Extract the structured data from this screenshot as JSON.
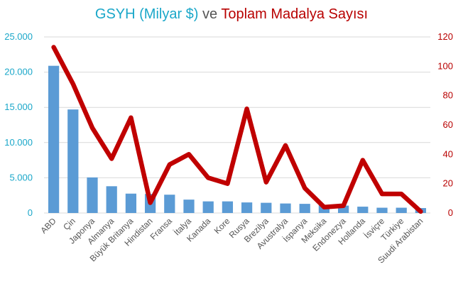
{
  "title": {
    "part1": "GSYH (Milyar $)",
    "part2": " ve ",
    "part3": "Toplam Madalya Sayısı"
  },
  "colors": {
    "bar": "#5b9bd5",
    "line": "#c00000",
    "left_axis_text": "#1aa7c9",
    "right_axis_text": "#b80000",
    "grid": "#d9d9d9"
  },
  "chart_data": {
    "type": "bar",
    "title": "GSYH (Milyar $) ve Toplam Madalya Sayısı",
    "categories": [
      "ABD",
      "Çin",
      "Japonya",
      "Almanya",
      "Büyük Britanya",
      "Hindistan",
      "Fransa",
      "İtalya",
      "Kanada",
      "Kore",
      "Rusya",
      "Brezilya",
      "Avustralya",
      "İspanya",
      "Meksika",
      "Endonezya",
      "Hollanda",
      "İsviçre",
      "Türkiye",
      "Suudi Arabistan"
    ],
    "series": [
      {
        "name": "GSYH (Milyar $)",
        "type": "bar",
        "axis": "left",
        "values": [
          20900,
          14700,
          5050,
          3800,
          2750,
          2700,
          2600,
          1900,
          1650,
          1650,
          1500,
          1450,
          1350,
          1300,
          1100,
          1050,
          900,
          750,
          750,
          700
        ]
      },
      {
        "name": "Toplam Madalya Sayısı",
        "type": "line",
        "axis": "right",
        "values": [
          113,
          88,
          58,
          37,
          65,
          7,
          33,
          40,
          24,
          20,
          71,
          21,
          46,
          17,
          4,
          5,
          36,
          13,
          13,
          1
        ]
      }
    ],
    "left_axis": {
      "min": 0,
      "max": 25000,
      "ticks": [
        "0",
        "5.000",
        "10.000",
        "15.000",
        "20.000",
        "25.000"
      ]
    },
    "right_axis": {
      "min": 0,
      "max": 120,
      "ticks": [
        "0",
        "20",
        "40",
        "60",
        "80",
        "100",
        "120"
      ]
    },
    "grid": true,
    "legend": "none"
  }
}
